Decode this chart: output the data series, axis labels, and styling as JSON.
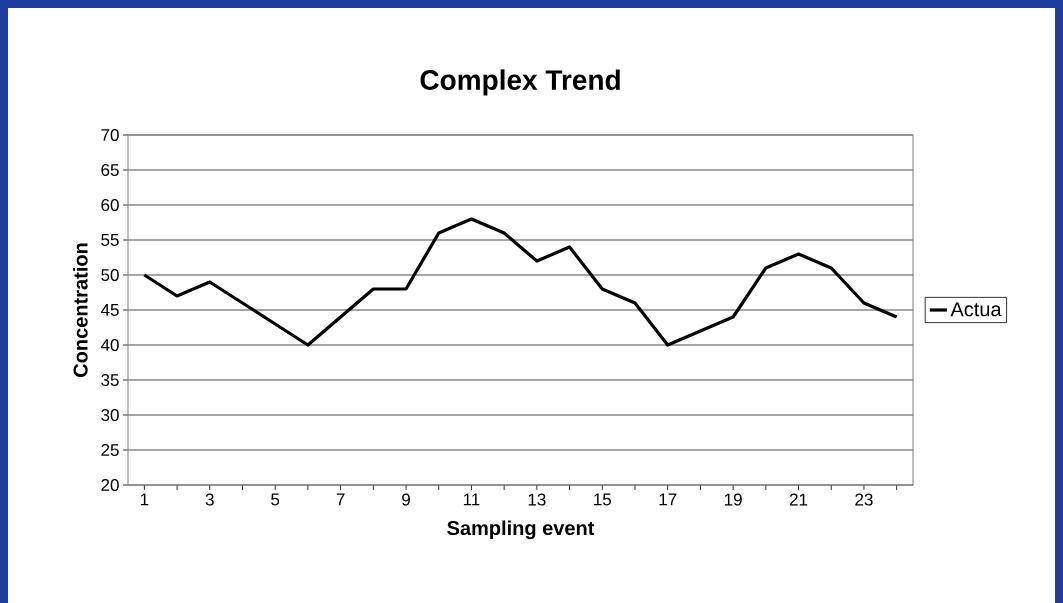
{
  "chart_data": {
    "type": "line",
    "title": "Complex Trend",
    "xlabel": "Sampling event",
    "ylabel": "Concentration",
    "categories": [
      "1",
      null,
      "3",
      null,
      "5",
      null,
      "7",
      null,
      "9",
      null,
      "11",
      null,
      "13",
      null,
      "15",
      null,
      "17",
      null,
      "19",
      null,
      "21",
      null,
      "23",
      null
    ],
    "series": [
      {
        "name": "Actua",
        "color": "#000000",
        "values": [
          50,
          47,
          49,
          46,
          43,
          40,
          44,
          48,
          48,
          56,
          58,
          56,
          52,
          54,
          48,
          46,
          40,
          42,
          44,
          51,
          53,
          51,
          46,
          44
        ]
      }
    ],
    "ylim": [
      20,
      70
    ],
    "yticks": [
      20,
      25,
      30,
      35,
      40,
      45,
      50,
      55,
      60,
      65,
      70
    ],
    "grid": "y",
    "legend": "right"
  }
}
